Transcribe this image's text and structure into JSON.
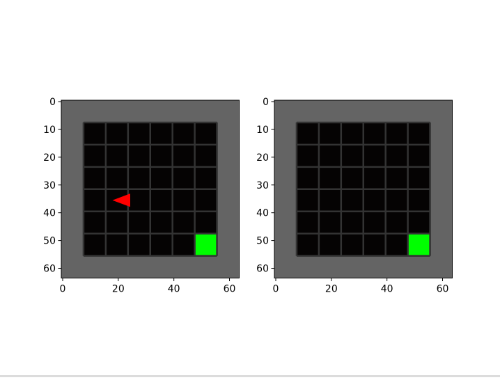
{
  "colors": {
    "background": "#ffffff",
    "wall": "#646464",
    "floor": "#050303",
    "grid_line": "#333333",
    "goal": "#00ff00",
    "agent": "#ff0000",
    "axes_frame": "#000000"
  },
  "env": {
    "size": 64,
    "grid_cells": 8,
    "cell_size": 8,
    "goal_cell": [
      6,
      6
    ],
    "agent_cell": [
      2,
      4
    ],
    "agent_direction": "left"
  },
  "axis_ticks": {
    "x": [
      {
        "value": 0,
        "label": "0"
      },
      {
        "value": 20,
        "label": "20"
      },
      {
        "value": 40,
        "label": "40"
      },
      {
        "value": 60,
        "label": "60"
      }
    ],
    "y": [
      {
        "value": 0,
        "label": "0"
      },
      {
        "value": 10,
        "label": "10"
      },
      {
        "value": 20,
        "label": "20"
      },
      {
        "value": 30,
        "label": "30"
      },
      {
        "value": 40,
        "label": "40"
      },
      {
        "value": 50,
        "label": "50"
      },
      {
        "value": 60,
        "label": "60"
      }
    ]
  },
  "panels": [
    {
      "name": "observation-panel-left",
      "show_agent": true
    },
    {
      "name": "observation-panel-right",
      "show_agent": false
    }
  ]
}
